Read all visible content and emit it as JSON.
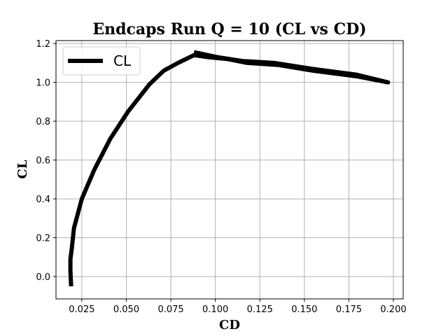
{
  "chart_data": {
    "type": "line",
    "title": "Endcaps Run Q = 10 (CL vs CD)",
    "xlabel": "CD",
    "ylabel": "CL",
    "xlim": [
      0.0105,
      0.2055
    ],
    "ylim": [
      -0.115,
      1.215
    ],
    "xticks": [
      0.025,
      0.05,
      0.075,
      0.1,
      0.125,
      0.15,
      0.175,
      0.2
    ],
    "xtick_labels": [
      "0.025",
      "0.050",
      "0.075",
      "0.100",
      "0.125",
      "0.150",
      "0.175",
      "0.200"
    ],
    "yticks": [
      0.0,
      0.2,
      0.4,
      0.6,
      0.8,
      1.0,
      1.2
    ],
    "ytick_labels": [
      "0.0",
      "0.2",
      "0.4",
      "0.6",
      "0.8",
      "1.0",
      "1.2"
    ],
    "grid": true,
    "legend_position": "top-left",
    "series": [
      {
        "name": "CL",
        "color": "#000000",
        "x": [
          0.019,
          0.0186,
          0.0186,
          0.0193,
          0.0206,
          0.025,
          0.032,
          0.041,
          0.051,
          0.063,
          0.071,
          0.079,
          0.088,
          0.096,
          0.107,
          0.118,
          0.135,
          0.155,
          0.18,
          0.197,
          0.179,
          0.154,
          0.133,
          0.115,
          0.101,
          0.088
        ],
        "y": [
          -0.05,
          0.03,
          0.09,
          0.14,
          0.25,
          0.4,
          0.55,
          0.71,
          0.85,
          0.99,
          1.06,
          1.1,
          1.14,
          1.13,
          1.12,
          1.1,
          1.09,
          1.06,
          1.03,
          1.0,
          1.04,
          1.07,
          1.1,
          1.11,
          1.13,
          1.155
        ]
      }
    ]
  }
}
